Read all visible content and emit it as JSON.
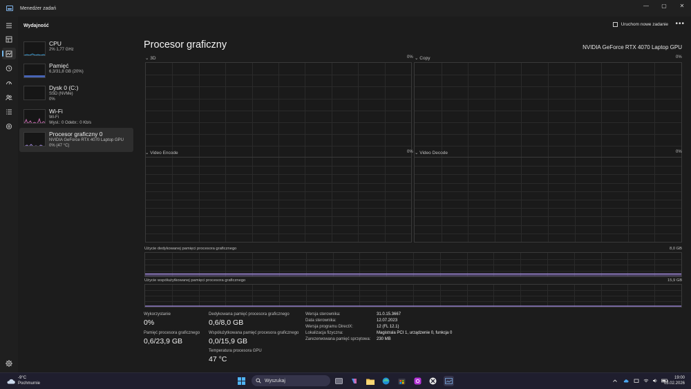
{
  "window": {
    "title": "Menedżer zadań",
    "minimize": "—",
    "maximize": "▢",
    "close": "✕"
  },
  "header": {
    "page": "Wydajność",
    "new_task": "Uruchom nowe zadanie",
    "more": "•••"
  },
  "sidebar": {
    "items": [
      {
        "title": "CPU",
        "line1": "2%  1,77 GHz",
        "line2": "",
        "line3": ""
      },
      {
        "title": "Pamięć",
        "line1": "6,3/31,8 GB (20%)",
        "line2": "",
        "line3": ""
      },
      {
        "title": "Dysk 0 (C:)",
        "line1": "SSD (NVMe)",
        "line2": "0%",
        "line3": ""
      },
      {
        "title": "Wi-Fi",
        "line1": "Wi-Fi",
        "line2": "Wysł.: 0 Odebr.: 0 Kb/s",
        "line3": ""
      },
      {
        "title": "Procesor graficzny 0",
        "line1": "NVIDIA GeForce RTX 4070 Laptop GPU",
        "line2": "0%  (47 °C)",
        "line3": ""
      }
    ]
  },
  "main": {
    "title": "Procesor graficzny",
    "model": "NVIDIA GeForce RTX 4070 Laptop GPU",
    "graphs": [
      {
        "label": "3D",
        "pct": "0%"
      },
      {
        "label": "Copy",
        "pct": "0%"
      },
      {
        "label": "Video Encode",
        "pct": "0%"
      },
      {
        "label": "Video Decode",
        "pct": "0%"
      }
    ],
    "dedicated": {
      "label": "Użycie dedykowanej pamięci procesora graficznego",
      "max": "8,0 GB"
    },
    "shared": {
      "label": "Użycie współużytkowanej pamięci procesora graficznego",
      "max": "15,9 GB"
    },
    "stats": {
      "utilization_label": "Wykorzystanie",
      "utilization": "0%",
      "gpu_mem_label": "Pamięć procesora graficznego",
      "gpu_mem": "0,6/23,9 GB",
      "ded_mem_label": "Dedykowana pamięć procesora graficznego",
      "ded_mem": "0,6/8,0 GB",
      "shared_mem_label": "Współużytkowana pamięć procesora graficznego",
      "shared_mem": "0,0/15,9 GB",
      "temp_label": "Temperatura procesora GPU",
      "temp": "47 °C"
    },
    "properties": [
      {
        "key": "Wersja sterownika:",
        "value": "31.0.15.3667"
      },
      {
        "key": "Data sterownika:",
        "value": "12.07.2023"
      },
      {
        "key": "Wersja programu DirectX:",
        "value": "12 (FL 12.1)"
      },
      {
        "key": "Lokalizacja fizyczna:",
        "value": "Magistrala PCI 1, urządzenie 0, funkcja 0"
      },
      {
        "key": "Zarezerwowana pamięć sprzętowa:",
        "value": "230 MB"
      }
    ],
    "utilization_3d": [
      0,
      0,
      0,
      1,
      0,
      2,
      4,
      1,
      0,
      1,
      0,
      0,
      3,
      2,
      0,
      0,
      0,
      1,
      0,
      0,
      0,
      0,
      0,
      0,
      0,
      0,
      0,
      0,
      0,
      0,
      0,
      0,
      0,
      0,
      0,
      0,
      0,
      0,
      0,
      0,
      0,
      0,
      0,
      0,
      0,
      0,
      0,
      0,
      0,
      0,
      0,
      0,
      0,
      0,
      0,
      0,
      0,
      0,
      0,
      0,
      0,
      0,
      0,
      0,
      0,
      0,
      0,
      0,
      0,
      0,
      0,
      0,
      0,
      0,
      0,
      0,
      0,
      0,
      0,
      0
    ],
    "utilization_copy": [
      0,
      0,
      0,
      0,
      0,
      0,
      0,
      0,
      0,
      0,
      0,
      0,
      0,
      0,
      0,
      0,
      0,
      0,
      0,
      0,
      0,
      0,
      0,
      0,
      0,
      0,
      0,
      0,
      0,
      0,
      0,
      0,
      0,
      0,
      0,
      0,
      0,
      0,
      0,
      0,
      0,
      0,
      0,
      0,
      0,
      0,
      0,
      0,
      0,
      0,
      0,
      0,
      0,
      0,
      0,
      0,
      0,
      0,
      0,
      0,
      0,
      0,
      0,
      0,
      0,
      0,
      0,
      0,
      0,
      0,
      0,
      0,
      0,
      0,
      0,
      0,
      0,
      0,
      0,
      0
    ],
    "accent": "#9d86d6"
  },
  "taskbar": {
    "weather_temp": "-9°C",
    "weather_desc": "Pochmurnie",
    "search": "Wyszukaj",
    "time": "19:00",
    "date": "03.02.2026"
  }
}
